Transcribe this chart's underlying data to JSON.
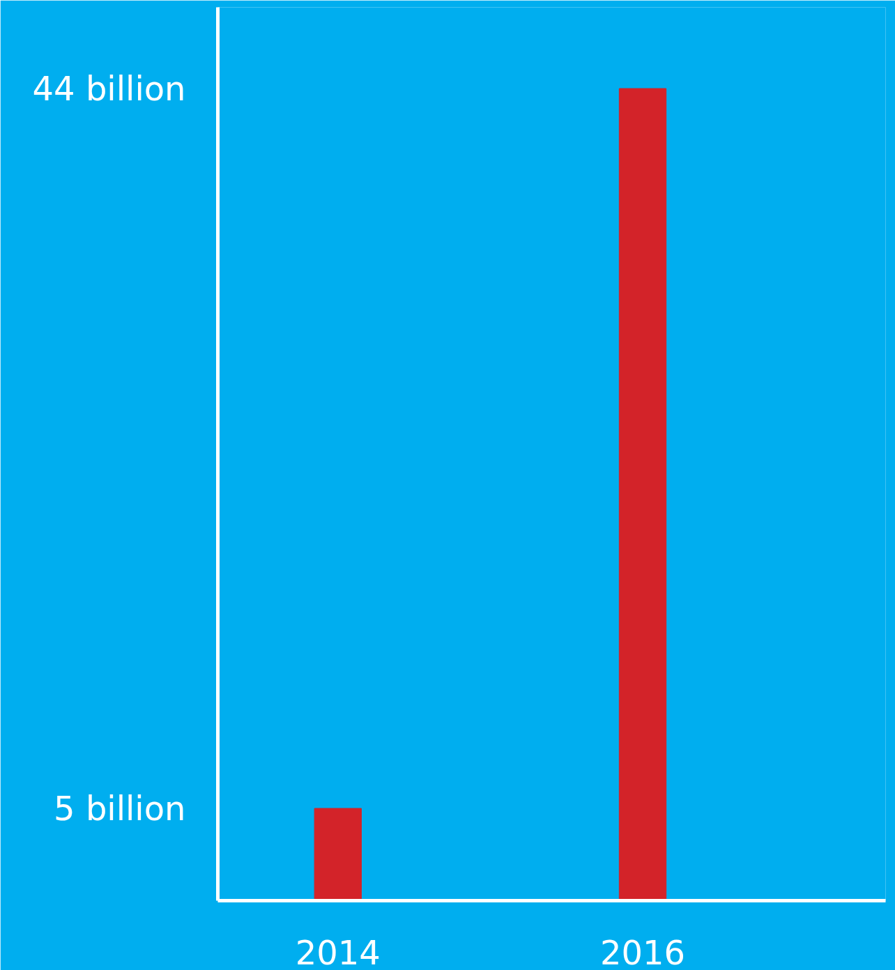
{
  "chart_data": {
    "type": "bar",
    "categories": [
      "2014",
      "2016"
    ],
    "values": [
      5,
      44
    ],
    "color": "#d32329",
    "ylim": [
      0,
      48.4
    ],
    "yticks": [
      {
        "value": 5,
        "label": "5 billion"
      },
      {
        "value": 44,
        "label": "44 billion"
      }
    ],
    "grid": false
  }
}
